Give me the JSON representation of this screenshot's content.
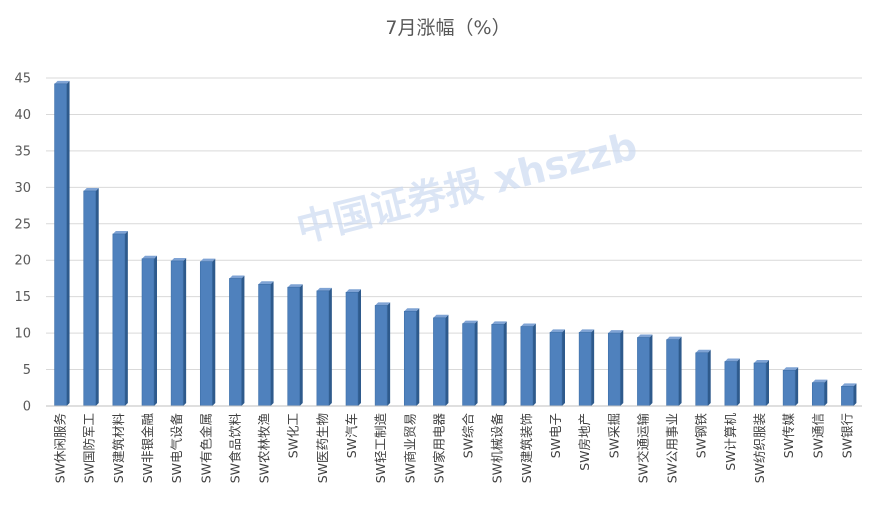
{
  "chart_data": {
    "type": "bar",
    "title": "7月涨幅（%）",
    "xlabel": "",
    "ylabel": "",
    "ylim": [
      0,
      45
    ],
    "yticks": [
      0,
      5,
      10,
      15,
      20,
      25,
      30,
      35,
      40,
      45
    ],
    "grid": true,
    "legend": "none",
    "bar_color": "#4F81BD",
    "watermark": "中国证券报 xhszzb",
    "categories": [
      "SW休闲服务",
      "SW国防军工",
      "SW建筑材料",
      "SW非银金融",
      "SW电气设备",
      "SW有色金属",
      "SW食品饮料",
      "SW农林牧渔",
      "SW化工",
      "SW医药生物",
      "SW汽车",
      "SW轻工制造",
      "SW商业贸易",
      "SW家用电器",
      "SW综合",
      "SW机械设备",
      "SW建筑装饰",
      "SW电子",
      "SW房地产",
      "SW采掘",
      "SW交通运输",
      "SW公用事业",
      "SW钢铁",
      "SW计算机",
      "SW纺织服装",
      "SW传媒",
      "SW通信",
      "SW银行"
    ],
    "values": [
      44.2,
      29.5,
      23.6,
      20.2,
      19.9,
      19.8,
      17.5,
      16.7,
      16.3,
      15.8,
      15.6,
      13.8,
      13.0,
      12.1,
      11.3,
      11.2,
      10.9,
      10.1,
      10.1,
      10.0,
      9.4,
      9.1,
      7.3,
      6.1,
      5.9,
      4.9,
      3.2,
      2.7
    ]
  }
}
